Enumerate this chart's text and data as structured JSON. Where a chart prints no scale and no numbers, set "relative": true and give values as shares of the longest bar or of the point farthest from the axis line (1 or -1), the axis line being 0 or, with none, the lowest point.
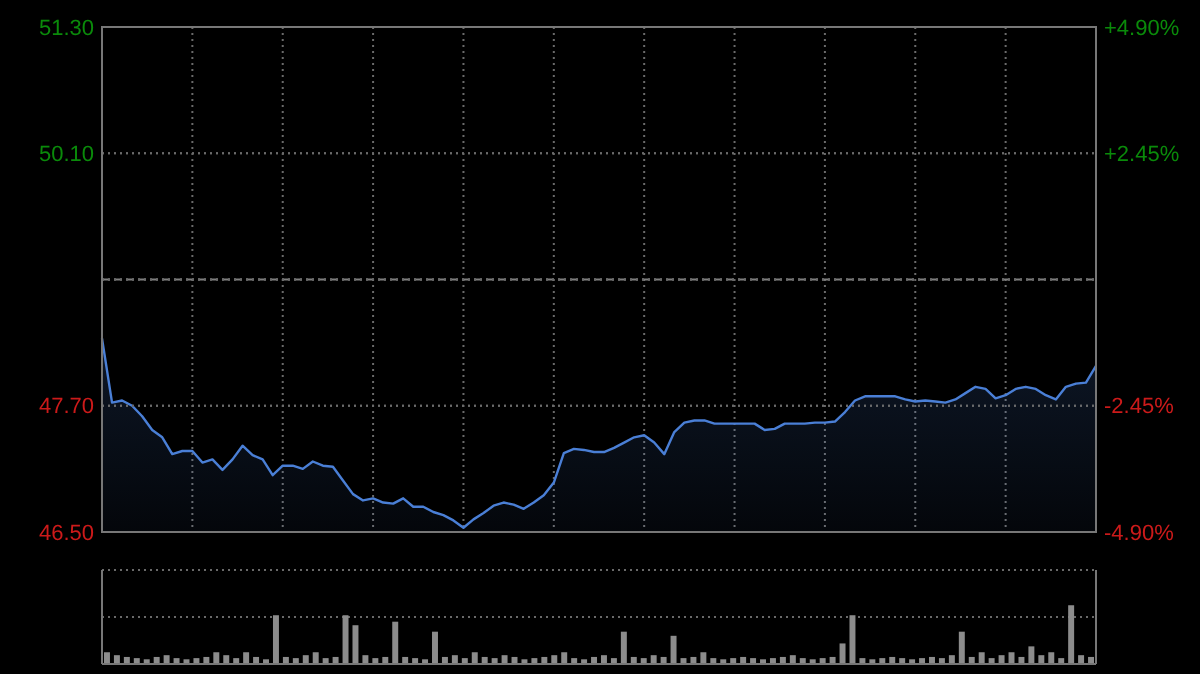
{
  "chart_data": [
    {
      "type": "area",
      "categories": [
        null,
        null,
        null,
        null,
        null,
        null,
        null,
        null,
        null,
        null,
        null,
        null,
        null,
        null,
        null,
        null,
        null,
        null,
        null,
        null,
        null,
        null,
        null,
        null,
        null,
        null,
        null,
        null,
        null,
        null,
        null,
        null,
        null,
        null,
        null,
        null,
        null,
        null,
        null,
        null,
        null,
        null,
        null,
        null,
        null,
        null,
        null,
        null,
        null,
        null,
        null,
        null,
        null,
        null,
        null,
        null,
        null,
        null,
        null,
        null,
        null,
        null,
        null,
        null,
        null,
        null,
        null,
        null,
        null,
        null,
        null,
        null,
        null,
        null,
        null,
        null,
        null,
        null,
        null,
        null,
        null,
        null,
        null,
        null,
        null,
        null,
        null,
        null,
        null,
        null,
        null,
        null,
        null,
        null,
        null,
        null,
        null,
        null,
        null,
        null
      ],
      "series": [
        {
          "color": "#4a7fd6",
          "values": [
            48.34,
            47.73,
            47.75,
            47.7,
            47.6,
            47.47,
            47.4,
            47.24,
            47.27,
            47.27,
            47.16,
            47.19,
            47.09,
            47.19,
            47.32,
            47.23,
            47.19,
            47.04,
            47.13,
            47.13,
            47.1,
            47.17,
            47.13,
            47.12,
            46.99,
            46.86,
            46.8,
            46.82,
            46.78,
            46.77,
            46.82,
            46.74,
            46.74,
            46.69,
            46.66,
            46.61,
            46.54,
            46.62,
            46.68,
            46.75,
            46.78,
            46.76,
            46.72,
            46.78,
            46.85,
            46.97,
            47.25,
            47.29,
            47.28,
            47.26,
            47.26,
            47.3,
            47.35,
            47.4,
            47.42,
            47.35,
            47.24,
            47.45,
            47.54,
            47.56,
            47.56,
            47.53,
            47.53,
            47.53,
            47.53,
            47.53,
            47.47,
            47.48,
            47.53,
            47.53,
            47.53,
            47.54,
            47.54,
            47.55,
            47.64,
            47.75,
            47.79,
            47.79,
            47.79,
            47.79,
            47.76,
            47.74,
            47.75,
            47.74,
            47.73,
            47.76,
            47.82,
            47.88,
            47.86,
            47.77,
            47.8,
            47.86,
            47.88,
            47.86,
            47.8,
            47.76,
            47.88,
            47.91,
            47.92,
            48.08
          ]
        }
      ],
      "ylim": [
        46.5,
        51.3
      ],
      "yticks": [
        {
          "value": 46.5,
          "label": "46.50"
        },
        {
          "value": 47.7,
          "label": "47.70"
        },
        {
          "value": 48.9,
          "label": null
        },
        {
          "value": 50.1,
          "label": "50.10"
        },
        {
          "value": 51.3,
          "label": "51.30"
        }
      ],
      "y2lim": [
        -4.9,
        4.9
      ],
      "y2ticks": [
        {
          "value": -4.9,
          "label": "-4.90%"
        },
        {
          "value": -2.45,
          "label": "-2.45%"
        },
        {
          "value": 0,
          "label": null
        },
        {
          "value": 2.45,
          "label": "+2.45%"
        },
        {
          "value": 4.9,
          "label": "+4.90%"
        }
      ],
      "grid": true,
      "ref_lines": [
        {
          "axis": "y",
          "value": 48.9,
          "color": "#808080",
          "line_style": "dashed"
        }
      ]
    },
    {
      "type": "bar",
      "relative": true,
      "color": "#8c8c8c",
      "ref_lines": [
        {
          "axis": "y",
          "value": 0.8,
          "color": "#6a6a6a",
          "line_style": "dotted"
        }
      ],
      "categories": [
        null,
        null,
        null,
        null,
        null,
        null,
        null,
        null,
        null,
        null,
        null,
        null,
        null,
        null,
        null,
        null,
        null,
        null,
        null,
        null,
        null,
        null,
        null,
        null,
        null,
        null,
        null,
        null,
        null,
        null,
        null,
        null,
        null,
        null,
        null,
        null,
        null,
        null,
        null,
        null,
        null,
        null,
        null,
        null,
        null,
        null,
        null,
        null,
        null,
        null,
        null,
        null,
        null,
        null,
        null,
        null,
        null,
        null,
        null,
        null,
        null,
        null,
        null,
        null,
        null,
        null,
        null,
        null,
        null,
        null,
        null,
        null,
        null,
        null,
        null,
        null,
        null,
        null,
        null,
        null,
        null,
        null,
        null,
        null,
        null,
        null,
        null,
        null,
        null,
        null,
        null,
        null,
        null,
        null,
        null,
        null,
        null,
        null,
        null,
        null
      ],
      "values": [
        0.2,
        0.15,
        0.12,
        0.1,
        0.08,
        0.12,
        0.15,
        0.1,
        0.08,
        0.1,
        0.12,
        0.2,
        0.15,
        0.1,
        0.2,
        0.12,
        0.08,
        0.83,
        0.12,
        0.1,
        0.15,
        0.2,
        0.1,
        0.12,
        0.83,
        0.66,
        0.15,
        0.1,
        0.12,
        0.72,
        0.12,
        0.1,
        0.08,
        0.55,
        0.12,
        0.15,
        0.1,
        0.2,
        0.12,
        0.1,
        0.15,
        0.12,
        0.08,
        0.1,
        0.12,
        0.15,
        0.2,
        0.1,
        0.08,
        0.12,
        0.15,
        0.1,
        0.55,
        0.12,
        0.1,
        0.15,
        0.12,
        0.48,
        0.1,
        0.12,
        0.2,
        0.1,
        0.08,
        0.1,
        0.12,
        0.1,
        0.08,
        0.1,
        0.12,
        0.15,
        0.1,
        0.08,
        0.1,
        0.12,
        0.35,
        0.83,
        0.1,
        0.08,
        0.1,
        0.12,
        0.1,
        0.08,
        0.1,
        0.12,
        0.1,
        0.15,
        0.55,
        0.12,
        0.2,
        0.1,
        0.15,
        0.2,
        0.12,
        0.3,
        0.15,
        0.2,
        0.1,
        1,
        0.15,
        0.12
      ]
    }
  ]
}
